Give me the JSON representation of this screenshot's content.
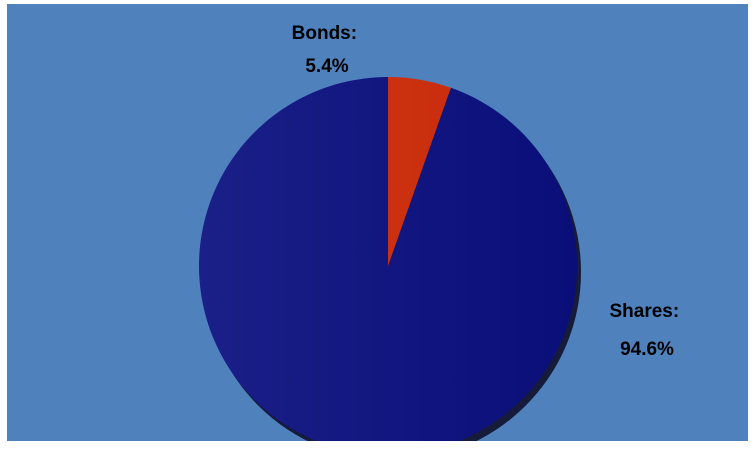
{
  "chart_data": {
    "type": "pie",
    "title": "",
    "start_angle_deg": 0,
    "direction": "counterclockwise",
    "slices": [
      {
        "name": "Shares",
        "value": 94.6,
        "label_name": "Shares:",
        "label_value": "94.6%",
        "color": "#0a0f80"
      },
      {
        "name": "Bonds",
        "value": 5.4,
        "label_name": "Bonds:",
        "label_value": "5.4%",
        "color": "#d12b08"
      }
    ]
  },
  "colors": {
    "background": "#4f81bd",
    "shadow": "#171b3a"
  }
}
